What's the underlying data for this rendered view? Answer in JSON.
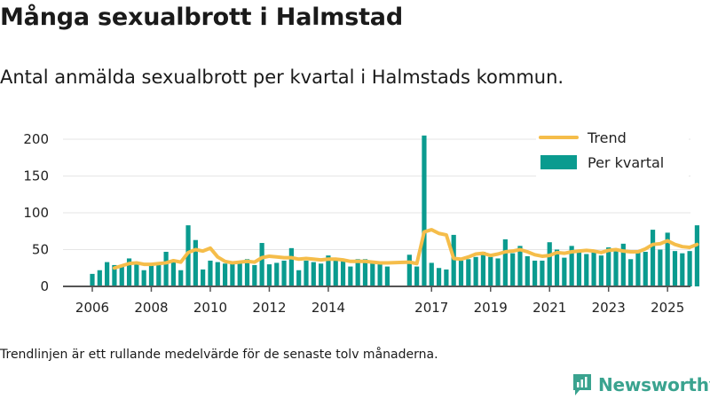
{
  "title": "Många sexualbrott i Halmstad",
  "subtitle": "Antal anmälda sexualbrott per kvartal i Halmstads kommun.",
  "footnote": "Trendlinjen är ett rullande medelvärde för de senaste tolv månaderna.",
  "brand": "Newsworthy",
  "colors": {
    "bar": "#0a9b8f",
    "trend": "#f5bd4a",
    "axis": "#555555",
    "grid": "#e6e6e6",
    "brand": "#3aa38f"
  },
  "chart_data": {
    "type": "bar",
    "title": "Många sexualbrott i Halmstad",
    "xlabel": "",
    "ylabel": "",
    "ylim": [
      0,
      210
    ],
    "yticks": [
      0,
      50,
      100,
      150,
      200
    ],
    "xticks": [
      "2006",
      "2008",
      "2010",
      "2012",
      "2014",
      "2017",
      "2019",
      "2021",
      "2023",
      "2025"
    ],
    "legend": {
      "placement": "top-right",
      "entries": [
        "Trend",
        "Per kvartal"
      ]
    },
    "series": [
      {
        "name": "Per kvartal",
        "kind": "bar",
        "start": "2006 Q1",
        "gap_after_index": 40,
        "values": [
          17,
          22,
          33,
          29,
          28,
          38,
          30,
          22,
          29,
          30,
          47,
          35,
          22,
          83,
          63,
          23,
          35,
          33,
          31,
          32,
          33,
          37,
          29,
          59,
          30,
          32,
          35,
          52,
          22,
          35,
          33,
          31,
          42,
          35,
          34,
          27,
          37,
          37,
          33,
          30,
          27,
          43,
          27,
          205,
          32,
          25,
          23,
          70,
          35,
          37,
          40,
          47,
          40,
          38,
          64,
          45,
          55,
          41,
          35,
          35,
          60,
          50,
          39,
          55,
          50,
          44,
          48,
          42,
          53,
          50,
          58,
          37,
          47,
          47,
          77,
          50,
          73,
          48,
          45,
          48,
          83
        ]
      },
      {
        "name": "Trend",
        "kind": "line",
        "values": [
          null,
          null,
          null,
          25,
          28,
          31,
          32,
          30,
          30,
          31,
          32,
          35,
          33,
          46,
          50,
          48,
          52,
          40,
          34,
          32,
          33,
          34,
          33,
          39,
          41,
          40,
          39,
          39,
          37,
          38,
          37,
          36,
          37,
          37,
          36,
          34,
          34,
          34,
          33,
          32,
          32,
          33,
          31,
          74,
          77,
          72,
          70,
          38,
          37,
          40,
          44,
          45,
          42,
          44,
          47,
          48,
          50,
          47,
          43,
          41,
          42,
          46,
          45,
          47,
          48,
          49,
          48,
          46,
          49,
          50,
          48,
          47,
          47,
          51,
          57,
          58,
          62,
          57,
          54,
          53,
          57
        ]
      }
    ]
  }
}
